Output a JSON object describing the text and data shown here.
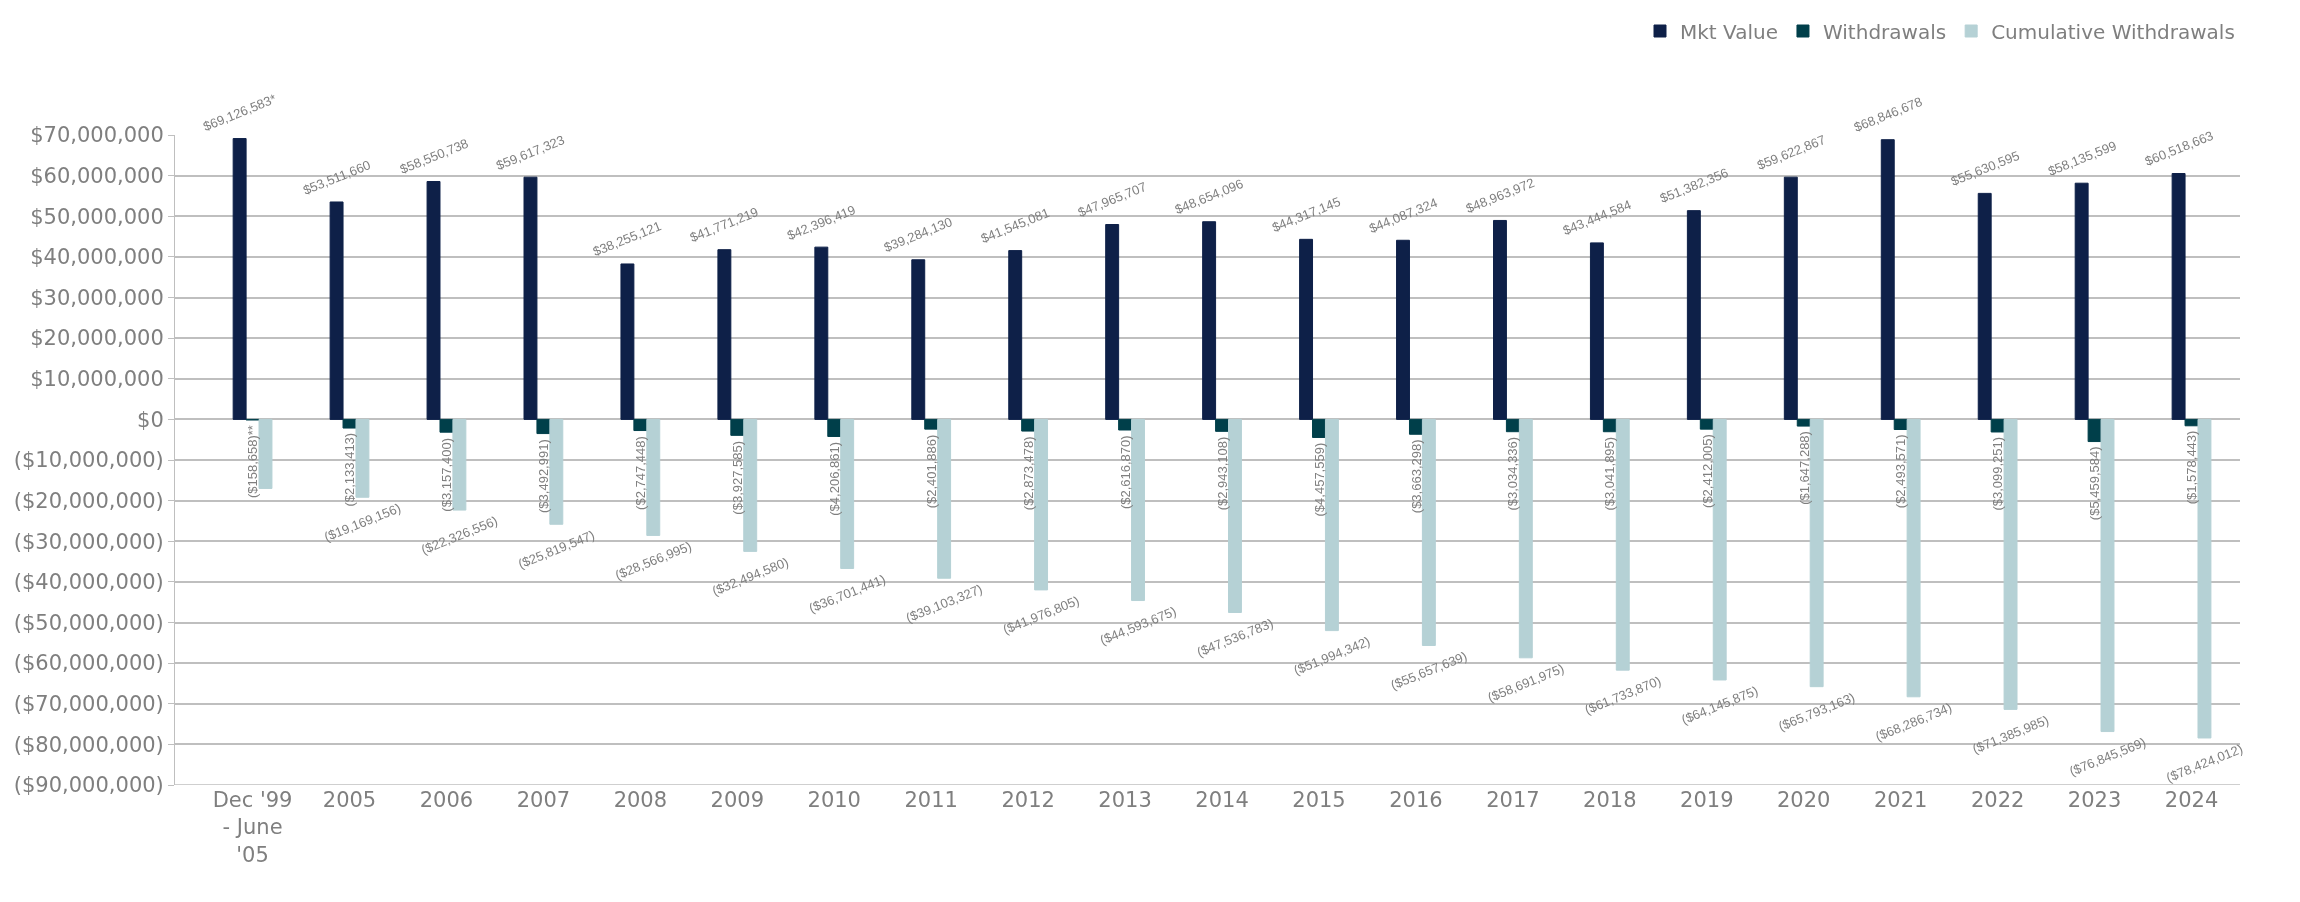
{
  "chart_data": {
    "type": "bar",
    "categories": [
      "Dec '99 - June '05",
      "2005",
      "2006",
      "2007",
      "2008",
      "2009",
      "2010",
      "2011",
      "2012",
      "2013",
      "2014",
      "2015",
      "2016",
      "2017",
      "2018",
      "2019",
      "2020",
      "2021",
      "2022",
      "2023",
      "2024"
    ],
    "series": [
      {
        "name": "Mkt Value",
        "color": "#0e2048",
        "values": [
          69126583,
          53511660,
          58550738,
          59617323,
          38255121,
          41771219,
          42396419,
          39284130,
          41545081,
          47965707,
          48654096,
          44317145,
          44087324,
          48963972,
          43444584,
          51382356,
          59622867,
          68846678,
          55630595,
          58135599,
          60518663
        ],
        "value_labels": [
          "$69,126,583*",
          "$53,511,660",
          "$58,550,738",
          "$59,617,323",
          "$38,255,121",
          "$41,771,219",
          "$42,396,419",
          "$39,284,130",
          "$41,545,081",
          "$47,965,707",
          "$48,654,096",
          "$44,317,145",
          "$44,087,324",
          "$48,963,972",
          "$43,444,584",
          "$51,382,356",
          "$59,622,867",
          "$68,846,678",
          "$55,630,595",
          "$58,135,599",
          "$60,518,663"
        ]
      },
      {
        "name": "Withdrawals",
        "color": "#003f4a",
        "values": [
          -158658,
          -2133413,
          -3157400,
          -3492991,
          -2747448,
          -3927585,
          -4206861,
          -2401886,
          -2873478,
          -2616870,
          -2943108,
          -4457559,
          -3663298,
          -3034336,
          -3041895,
          -2412005,
          -1647288,
          -2493571,
          -3099251,
          -5459584,
          -1578443
        ],
        "value_labels": [
          "($158,658)**",
          "($2,133,413)",
          "($3,157,400)",
          "($3,492,991)",
          "($2,747,448)",
          "($3,927,585)",
          "($4,206,861)",
          "($2,401,886)",
          "($2,873,478)",
          "($2,616,870)",
          "($2,943,108)",
          "($4,457,559)",
          "($3,663,298)",
          "($3,034,336)",
          "($3,041,895)",
          "($2,412,005)",
          "($1,647,288)",
          "($2,493,571)",
          "($3,099,251)",
          "($5,459,584)",
          "($1,578,443)"
        ]
      },
      {
        "name": "Cumulative Withdrawals",
        "color": "#b5d1d5",
        "values": [
          -17000000,
          -19169156,
          -22326556,
          -25819547,
          -28566995,
          -32494580,
          -36701441,
          -39103327,
          -41976805,
          -44593675,
          -47536783,
          -51994342,
          -55657639,
          -58691975,
          -61733870,
          -64145875,
          -65793163,
          -68286734,
          -71385985,
          -76845569,
          -78424012
        ],
        "value_labels": [
          null,
          "($19,169,156)",
          "($22,326,556)",
          "($25,819,547)",
          "($28,566,995)",
          "($32,494,580)",
          "($36,701,441)",
          "($39,103,327)",
          "($41,976,805)",
          "($44,593,675)",
          "($47,536,783)",
          "($51,994,342)",
          "($55,657,639)",
          "($58,691,975)",
          "($61,733,870)",
          "($64,145,875)",
          "($65,793,163)",
          "($68,286,734)",
          "($71,385,985)",
          "($76,845,569)",
          "($78,424,012)"
        ]
      }
    ],
    "ylim": [
      -90000000,
      70000000
    ],
    "yticks": [
      {
        "value": 70000000,
        "label": "$70,000,000"
      },
      {
        "value": 60000000,
        "label": "$60,000,000"
      },
      {
        "value": 50000000,
        "label": "$50,000,000"
      },
      {
        "value": 40000000,
        "label": "$40,000,000"
      },
      {
        "value": 30000000,
        "label": "$30,000,000"
      },
      {
        "value": 20000000,
        "label": "$20,000,000"
      },
      {
        "value": 10000000,
        "label": "$10,000,000"
      },
      {
        "value": 0,
        "label": "$0"
      },
      {
        "value": -10000000,
        "label": "($10,000,000)"
      },
      {
        "value": -20000000,
        "label": "($20,000,000)"
      },
      {
        "value": -30000000,
        "label": "($30,000,000)"
      },
      {
        "value": -40000000,
        "label": "($40,000,000)"
      },
      {
        "value": -50000000,
        "label": "($50,000,000)"
      },
      {
        "value": -60000000,
        "label": "($60,000,000)"
      },
      {
        "value": -70000000,
        "label": "($70,000,000)"
      },
      {
        "value": -80000000,
        "label": "($80,000,000)"
      },
      {
        "value": -90000000,
        "label": "($90,000,000)"
      }
    ],
    "grid": "y",
    "legend": "top right"
  }
}
